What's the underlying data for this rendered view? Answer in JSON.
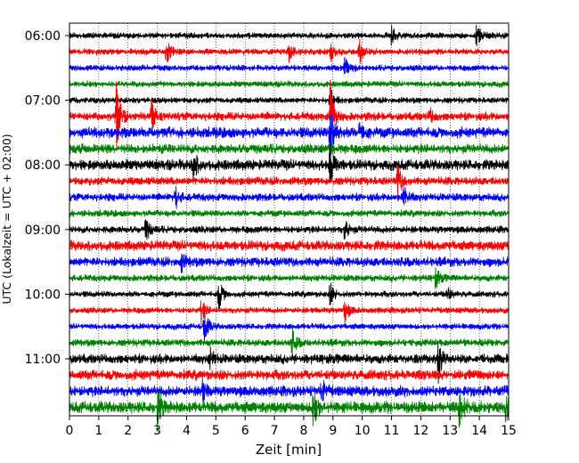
{
  "chart_data": {
    "type": "line",
    "subtype": "seismogram-helicorder",
    "title": "",
    "xlabel": "Zeit  [min]",
    "ylabel": "UTC (Lokalzeit = UTC + 02:00)",
    "xlim": [
      0,
      15
    ],
    "x_ticks": [
      0,
      1,
      2,
      3,
      4,
      5,
      6,
      7,
      8,
      9,
      10,
      11,
      12,
      13,
      14,
      15
    ],
    "x_tick_labels": [
      "0",
      "1",
      "2",
      "3",
      "4",
      "5",
      "6",
      "7",
      "8",
      "9",
      "10",
      "11",
      "12",
      "13",
      "14",
      "15"
    ],
    "vertical_grid": "dotted",
    "row_interval_min": 15,
    "row_count": 24,
    "y_ticks": [
      {
        "row": 0,
        "label": "06:00"
      },
      {
        "row": 4,
        "label": "07:00"
      },
      {
        "row": 8,
        "label": "08:00"
      },
      {
        "row": 12,
        "label": "09:00"
      },
      {
        "row": 16,
        "label": "10:00"
      },
      {
        "row": 20,
        "label": "11:00"
      }
    ],
    "trace_colors": [
      "#000000",
      "#ff0000",
      "#0000ff",
      "#008000"
    ],
    "color_cycle": "black, red, blue, green repeating per 15-minute row",
    "noise_level": [
      1,
      1,
      1,
      1,
      1,
      1.4,
      1.8,
      1.6,
      1.8,
      1.4,
      1.3,
      1.1,
      1.2,
      1.7,
      1.6,
      1.1,
      1.0,
      1.0,
      1.0,
      1.2,
      1.6,
      1.7,
      1.8,
      2.0
    ],
    "events": [
      {
        "row": 0,
        "x": 11.0,
        "amp": 0.22
      },
      {
        "row": 0,
        "x": 13.9,
        "amp": 0.28
      },
      {
        "row": 1,
        "x": 3.3,
        "amp": 0.35
      },
      {
        "row": 1,
        "x": 7.5,
        "amp": 0.25
      },
      {
        "row": 1,
        "x": 8.9,
        "amp": 0.3
      },
      {
        "row": 1,
        "x": 9.9,
        "amp": 0.3
      },
      {
        "row": 2,
        "x": 9.4,
        "amp": 0.3
      },
      {
        "row": 4,
        "x": 8.9,
        "amp": 0.3
      },
      {
        "row": 5,
        "x": 1.6,
        "amp": 1.0
      },
      {
        "row": 5,
        "x": 2.8,
        "amp": 0.45
      },
      {
        "row": 5,
        "x": 8.9,
        "amp": 0.9
      },
      {
        "row": 5,
        "x": 12.3,
        "amp": 0.2
      },
      {
        "row": 6,
        "x": 8.9,
        "amp": 0.9
      },
      {
        "row": 6,
        "x": 9.9,
        "amp": 0.35
      },
      {
        "row": 7,
        "x": 8.9,
        "amp": 0.25
      },
      {
        "row": 8,
        "x": 4.2,
        "amp": 0.45
      },
      {
        "row": 8,
        "x": 8.9,
        "amp": 0.5
      },
      {
        "row": 9,
        "x": 11.2,
        "amp": 0.45
      },
      {
        "row": 10,
        "x": 3.6,
        "amp": 0.3
      },
      {
        "row": 10,
        "x": 11.4,
        "amp": 0.4
      },
      {
        "row": 12,
        "x": 2.6,
        "amp": 0.3
      },
      {
        "row": 12,
        "x": 9.4,
        "amp": 0.3
      },
      {
        "row": 14,
        "x": 3.8,
        "amp": 0.25
      },
      {
        "row": 15,
        "x": 12.5,
        "amp": 0.25
      },
      {
        "row": 16,
        "x": 5.1,
        "amp": 0.4
      },
      {
        "row": 16,
        "x": 8.9,
        "amp": 0.3
      },
      {
        "row": 16,
        "x": 12.9,
        "amp": 0.2
      },
      {
        "row": 17,
        "x": 4.5,
        "amp": 0.3
      },
      {
        "row": 17,
        "x": 9.4,
        "amp": 0.3
      },
      {
        "row": 18,
        "x": 4.6,
        "amp": 0.45
      },
      {
        "row": 19,
        "x": 7.6,
        "amp": 0.35
      },
      {
        "row": 20,
        "x": 4.8,
        "amp": 0.25
      },
      {
        "row": 20,
        "x": 12.6,
        "amp": 0.55
      },
      {
        "row": 22,
        "x": 4.5,
        "amp": 0.35
      },
      {
        "row": 22,
        "x": 8.6,
        "amp": 0.3
      },
      {
        "row": 23,
        "x": 3.0,
        "amp": 0.5
      },
      {
        "row": 23,
        "x": 8.3,
        "amp": 0.7
      },
      {
        "row": 23,
        "x": 13.3,
        "amp": 0.5
      },
      {
        "row": 23,
        "x": 14.9,
        "amp": 0.4
      }
    ]
  }
}
